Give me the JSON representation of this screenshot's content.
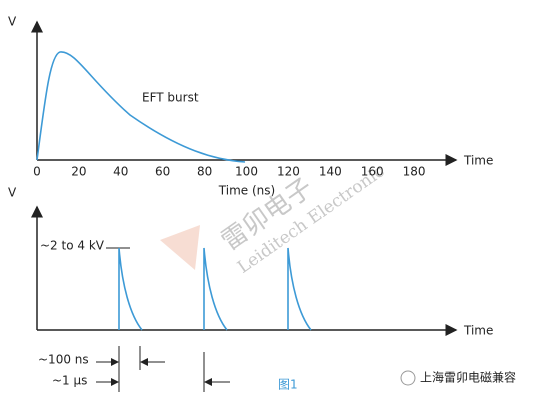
{
  "top": {
    "y_label": "V",
    "x_end_label": "Time",
    "x_axis_title": "Time (ns)",
    "annotation": "EFT burst",
    "x_tick_labels": [
      "0",
      "20",
      "40",
      "60",
      "80",
      "100",
      "120",
      "140",
      "160",
      "180"
    ]
  },
  "bottom": {
    "y_label": "V",
    "x_end_label": "Time",
    "amplitude": "~2 to 4 kV",
    "pulse_width": "~100 ns",
    "period": "~1 μs"
  },
  "watermark": {
    "chinese": "雷卯电子",
    "english": "Leiditech Electronic"
  },
  "caption": "图1",
  "source": "上海雷卯电磁兼容"
}
